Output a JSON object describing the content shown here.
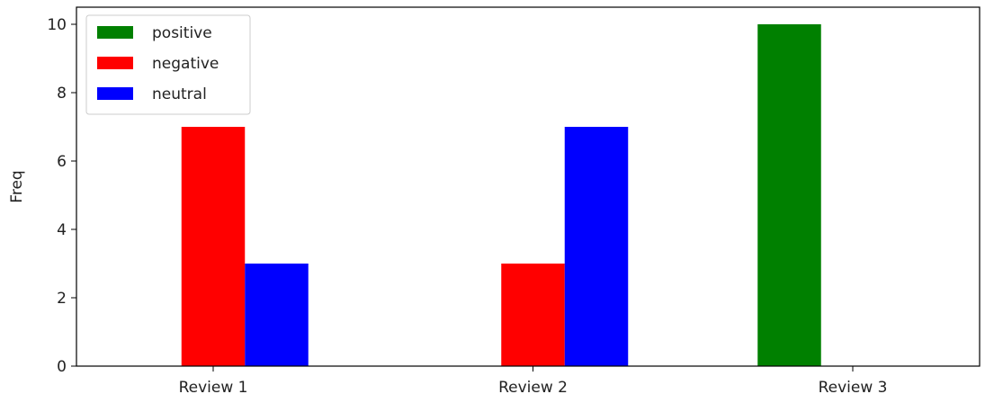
{
  "chart_data": {
    "type": "bar",
    "title": "",
    "xlabel": "",
    "ylabel": "Freq",
    "categories": [
      "Review 1",
      "Review 2",
      "Review 3"
    ],
    "series": [
      {
        "name": "positive",
        "color": "#008000",
        "values": [
          0,
          0,
          10
        ]
      },
      {
        "name": "negative",
        "color": "#ff0000",
        "values": [
          7,
          3,
          0
        ]
      },
      {
        "name": "neutral",
        "color": "#0000ff",
        "values": [
          3,
          7,
          0
        ]
      }
    ],
    "ylim": [
      0,
      10.5
    ],
    "yticks": [
      0,
      2,
      4,
      6,
      8,
      10
    ],
    "grid": false,
    "legend_position": "top-left"
  }
}
